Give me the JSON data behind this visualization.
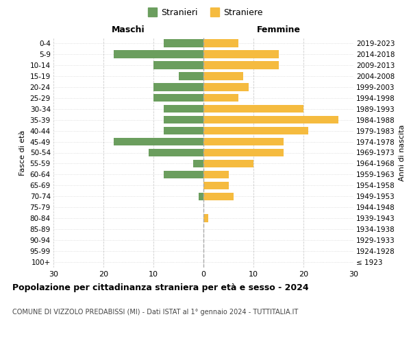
{
  "age_groups": [
    "100+",
    "95-99",
    "90-94",
    "85-89",
    "80-84",
    "75-79",
    "70-74",
    "65-69",
    "60-64",
    "55-59",
    "50-54",
    "45-49",
    "40-44",
    "35-39",
    "30-34",
    "25-29",
    "20-24",
    "15-19",
    "10-14",
    "5-9",
    "0-4"
  ],
  "birth_years": [
    "≤ 1923",
    "1924-1928",
    "1929-1933",
    "1934-1938",
    "1939-1943",
    "1944-1948",
    "1949-1953",
    "1954-1958",
    "1959-1963",
    "1964-1968",
    "1969-1973",
    "1974-1978",
    "1979-1983",
    "1984-1988",
    "1989-1993",
    "1994-1998",
    "1999-2003",
    "2004-2008",
    "2009-2013",
    "2014-2018",
    "2019-2023"
  ],
  "maschi": [
    0,
    0,
    0,
    0,
    0,
    0,
    1,
    0,
    8,
    2,
    11,
    18,
    8,
    8,
    8,
    10,
    10,
    5,
    10,
    18,
    8
  ],
  "femmine": [
    0,
    0,
    0,
    0,
    1,
    0,
    6,
    5,
    5,
    10,
    16,
    16,
    21,
    27,
    20,
    7,
    9,
    8,
    15,
    15,
    7
  ],
  "color_maschi": "#6b9e5e",
  "color_femmine": "#f5bb3f",
  "title": "Popolazione per cittadinanza straniera per età e sesso - 2024",
  "subtitle": "COMUNE DI VIZZOLO PREDABISSI (MI) - Dati ISTAT al 1° gennaio 2024 - TUTTITALIA.IT",
  "xlabel_left": "Maschi",
  "xlabel_right": "Femmine",
  "ylabel_left": "Fasce di età",
  "ylabel_right": "Anni di nascita",
  "legend_maschi": "Stranieri",
  "legend_femmine": "Straniere",
  "xlim": 30,
  "background_color": "#ffffff",
  "grid_color": "#cccccc"
}
